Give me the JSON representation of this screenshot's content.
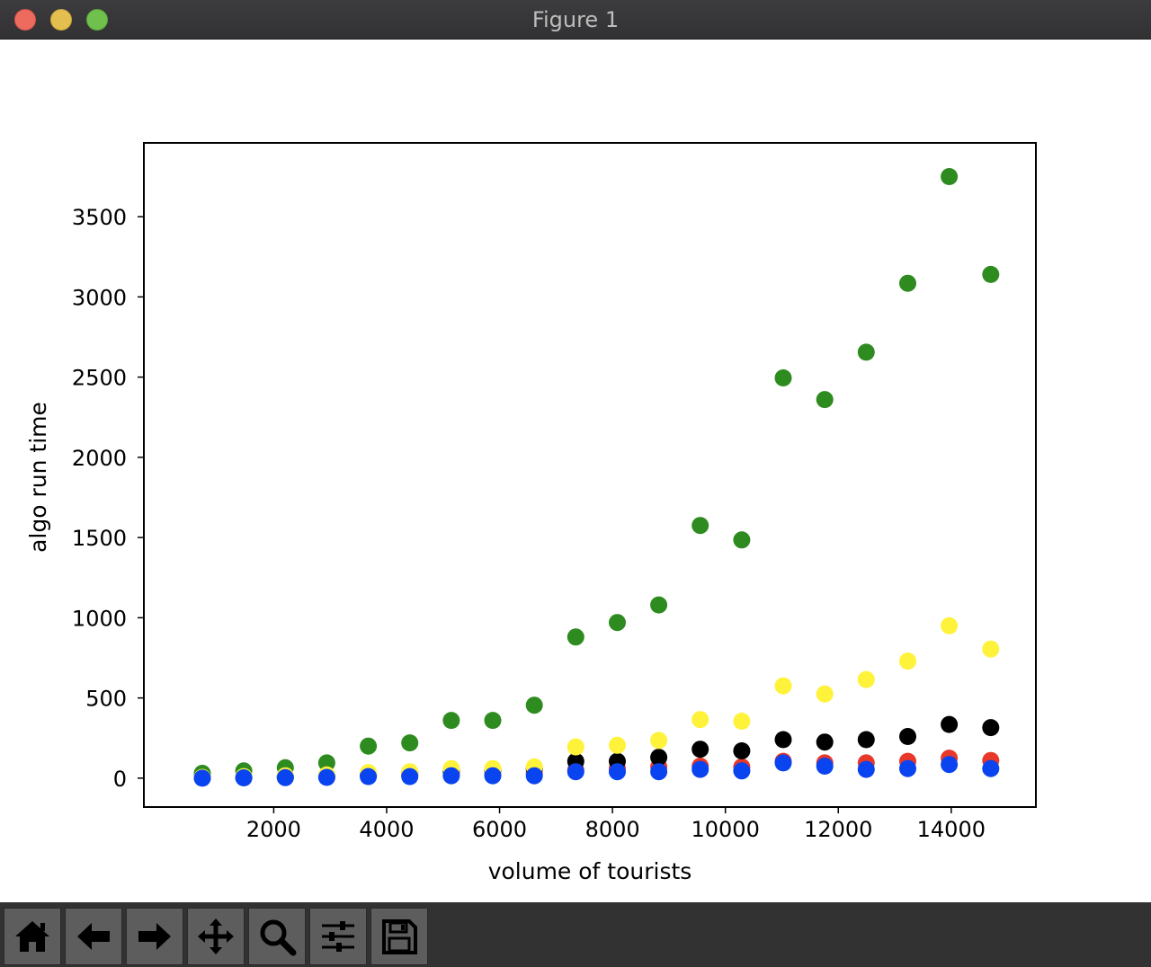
{
  "window": {
    "title": "Figure 1"
  },
  "toolbar": {
    "buttons": [
      {
        "icon": "home-icon",
        "label": "Home"
      },
      {
        "icon": "back-arrow-icon",
        "label": "Back"
      },
      {
        "icon": "forward-arrow-icon",
        "label": "Forward"
      },
      {
        "icon": "pan-icon",
        "label": "Pan"
      },
      {
        "icon": "zoom-icon",
        "label": "Zoom"
      },
      {
        "icon": "sliders-icon",
        "label": "Configure subplots"
      },
      {
        "icon": "save-icon",
        "label": "Save"
      }
    ]
  },
  "colors": {
    "green": "#2e8b1f",
    "yellow": "#fff23a",
    "black": "#000000",
    "red": "#e8382a",
    "blue": "#0a44f0"
  },
  "chart_data": {
    "type": "scatter",
    "title": "",
    "xlabel": "volume of tourists",
    "ylabel": "algo run time",
    "xlim": [
      -300,
      15500
    ],
    "ylim": [
      -180,
      3960
    ],
    "xticks": [
      2000,
      4000,
      6000,
      8000,
      10000,
      12000,
      14000
    ],
    "yticks": [
      0,
      500,
      1000,
      1500,
      2000,
      2500,
      3000,
      3500
    ],
    "grid": false,
    "x": [
      735,
      1470,
      2205,
      2940,
      3675,
      4410,
      5145,
      5880,
      6615,
      7350,
      8085,
      8820,
      9555,
      10290,
      11025,
      11760,
      12495,
      13230,
      13965,
      14700
    ],
    "series": [
      {
        "color": "#e8382a",
        "values": [
          2,
          3,
          5,
          10,
          15,
          18,
          25,
          22,
          30,
          50,
          60,
          70,
          75,
          70,
          105,
          95,
          95,
          105,
          125,
          110
        ]
      },
      {
        "color": "#2e8b1f",
        "values": [
          30,
          45,
          65,
          95,
          200,
          220,
          360,
          360,
          455,
          880,
          970,
          1080,
          1575,
          1485,
          2495,
          2360,
          2655,
          3085,
          3750,
          3140
        ]
      },
      {
        "color": "#000000",
        "values": [
          3,
          6,
          10,
          15,
          25,
          35,
          45,
          50,
          60,
          105,
          105,
          130,
          180,
          170,
          240,
          225,
          240,
          260,
          335,
          315
        ]
      },
      {
        "color": "#fff23a",
        "values": [
          5,
          10,
          15,
          20,
          35,
          40,
          60,
          60,
          70,
          195,
          205,
          235,
          365,
          355,
          575,
          525,
          615,
          730,
          950,
          805
        ]
      },
      {
        "color": "#0a44f0",
        "values": [
          0,
          2,
          3,
          5,
          10,
          10,
          15,
          15,
          15,
          40,
          40,
          40,
          55,
          45,
          95,
          75,
          55,
          60,
          85,
          60
        ]
      }
    ]
  }
}
